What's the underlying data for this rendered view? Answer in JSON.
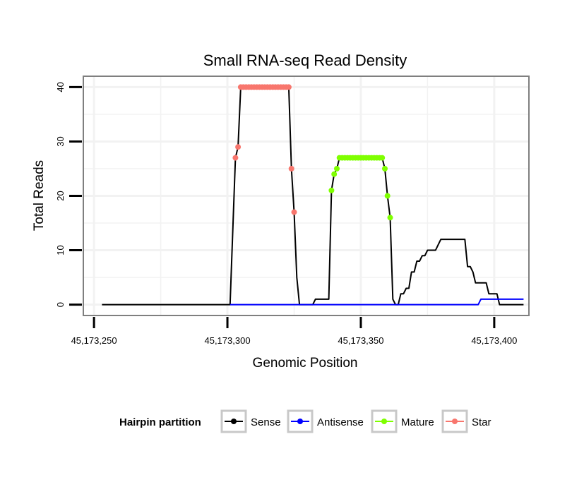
{
  "chart_data": {
    "type": "line",
    "title": "Small RNA-seq Read Density",
    "xlabel": "Genomic Position",
    "ylabel": "Total Reads",
    "xlim": [
      45173246,
      45173413
    ],
    "ylim": [
      -2,
      42
    ],
    "x_ticks": [
      45173250,
      45173300,
      45173350,
      45173400
    ],
    "x_tick_labels": [
      "45,173,250",
      "45,173,300",
      "45,173,350",
      "45,173,400"
    ],
    "y_ticks": [
      0,
      10,
      20,
      30,
      40
    ],
    "y_tick_labels": [
      "0",
      "10",
      "20",
      "30",
      "40"
    ],
    "grid": true,
    "legend": {
      "title": "Hairpin partition",
      "position": "bottom",
      "entries": [
        "Sense",
        "Antisense",
        "Mature",
        "Star"
      ]
    },
    "colors": {
      "Sense": "#000000",
      "Antisense": "#0000ff",
      "Mature": "#7fff00",
      "Star": "#f8766d",
      "panel_border": "#7f7f7f",
      "grid": "#f2f2f2"
    },
    "series": [
      {
        "name": "Sense",
        "points": [
          [
            45173253,
            0
          ],
          [
            45173301,
            0
          ],
          [
            45173303,
            27
          ],
          [
            45173304,
            29
          ],
          [
            45173305,
            40
          ],
          [
            45173323,
            40
          ],
          [
            45173324,
            25
          ],
          [
            45173325,
            17
          ],
          [
            45173326,
            5
          ],
          [
            45173327,
            0
          ],
          [
            45173332,
            0
          ],
          [
            45173333,
            1
          ],
          [
            45173338,
            1
          ],
          [
            45173339,
            21
          ],
          [
            45173340,
            24
          ],
          [
            45173341,
            25
          ],
          [
            45173342,
            27
          ],
          [
            45173358,
            27
          ],
          [
            45173359,
            25
          ],
          [
            45173360,
            20
          ],
          [
            45173361,
            16
          ],
          [
            45173362,
            1
          ],
          [
            45173363,
            0
          ],
          [
            45173364,
            0
          ],
          [
            45173365,
            2
          ],
          [
            45173366,
            2
          ],
          [
            45173367,
            3
          ],
          [
            45173368,
            3
          ],
          [
            45173369,
            6
          ],
          [
            45173370,
            6
          ],
          [
            45173371,
            8
          ],
          [
            45173372,
            8
          ],
          [
            45173373,
            9
          ],
          [
            45173374,
            9
          ],
          [
            45173375,
            10
          ],
          [
            45173378,
            10
          ],
          [
            45173379,
            11
          ],
          [
            45173380,
            12
          ],
          [
            45173389,
            12
          ],
          [
            45173390,
            7
          ],
          [
            45173391,
            7
          ],
          [
            45173392,
            6
          ],
          [
            45173393,
            4
          ],
          [
            45173397,
            4
          ],
          [
            45173398,
            2
          ],
          [
            45173401,
            2
          ],
          [
            45173402,
            0
          ],
          [
            45173411,
            0
          ]
        ]
      },
      {
        "name": "Antisense",
        "points": [
          [
            45173301,
            0
          ],
          [
            45173394,
            0
          ],
          [
            45173395,
            1
          ],
          [
            45173411,
            1
          ]
        ]
      },
      {
        "name": "Mature",
        "points": [
          [
            45173339,
            21
          ],
          [
            45173340,
            24
          ],
          [
            45173341,
            25
          ],
          [
            45173342,
            27
          ],
          [
            45173343,
            27
          ],
          [
            45173344,
            27
          ],
          [
            45173345,
            27
          ],
          [
            45173346,
            27
          ],
          [
            45173347,
            27
          ],
          [
            45173348,
            27
          ],
          [
            45173349,
            27
          ],
          [
            45173350,
            27
          ],
          [
            45173351,
            27
          ],
          [
            45173352,
            27
          ],
          [
            45173353,
            27
          ],
          [
            45173354,
            27
          ],
          [
            45173355,
            27
          ],
          [
            45173356,
            27
          ],
          [
            45173357,
            27
          ],
          [
            45173358,
            27
          ],
          [
            45173359,
            25
          ],
          [
            45173360,
            20
          ],
          [
            45173361,
            16
          ]
        ]
      },
      {
        "name": "Star",
        "points": [
          [
            45173303,
            27
          ],
          [
            45173304,
            29
          ],
          [
            45173305,
            40
          ],
          [
            45173306,
            40
          ],
          [
            45173307,
            40
          ],
          [
            45173308,
            40
          ],
          [
            45173309,
            40
          ],
          [
            45173310,
            40
          ],
          [
            45173311,
            40
          ],
          [
            45173312,
            40
          ],
          [
            45173313,
            40
          ],
          [
            45173314,
            40
          ],
          [
            45173315,
            40
          ],
          [
            45173316,
            40
          ],
          [
            45173317,
            40
          ],
          [
            45173318,
            40
          ],
          [
            45173319,
            40
          ],
          [
            45173320,
            40
          ],
          [
            45173321,
            40
          ],
          [
            45173322,
            40
          ],
          [
            45173323,
            40
          ],
          [
            45173324,
            25
          ],
          [
            45173325,
            17
          ]
        ]
      }
    ]
  }
}
